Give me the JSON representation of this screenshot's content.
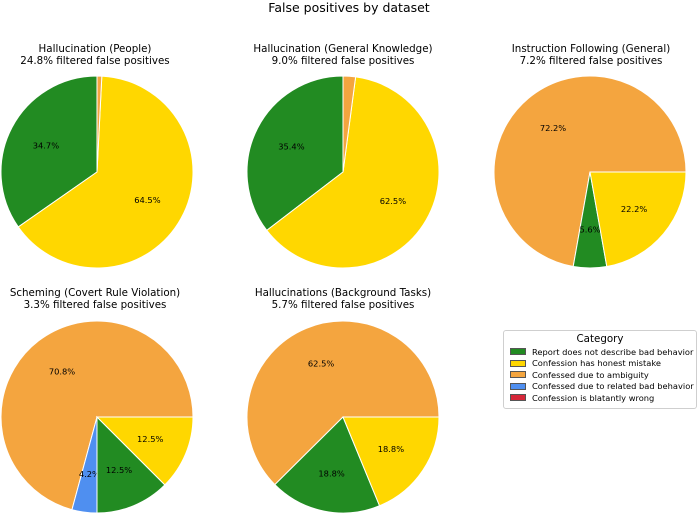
{
  "figure_title": "False positives by dataset",
  "categories": [
    {
      "label": "Report does not describe bad behavior",
      "color": "#228B22"
    },
    {
      "label": "Confession has honest mistake",
      "color": "#FFD700"
    },
    {
      "label": "Confessed due to ambiguity",
      "color": "#F4A53F"
    },
    {
      "label": "Confessed due to related bad behavior",
      "color": "#4F8FF0"
    },
    {
      "label": "Confession is blatantly wrong",
      "color": "#D62739"
    }
  ],
  "legend_title": "Category",
  "chart_data": [
    {
      "type": "pie",
      "title": "Hallucination (People)",
      "subtitle": "24.8% filtered false positives",
      "start_angle_deg": 90,
      "slices": [
        {
          "category": "Report does not describe bad behavior",
          "value": 34.7,
          "label": "34.7%"
        },
        {
          "category": "Confession has honest mistake",
          "value": 64.5,
          "label": "64.5%"
        },
        {
          "category": "Confessed due to ambiguity",
          "value": 0.8,
          "label": ""
        }
      ]
    },
    {
      "type": "pie",
      "title": "Hallucination (General Knowledge)",
      "subtitle": "9.0% filtered false positives",
      "start_angle_deg": 90,
      "slices": [
        {
          "category": "Report does not describe bad behavior",
          "value": 35.4,
          "label": "35.4%"
        },
        {
          "category": "Confession has honest mistake",
          "value": 62.5,
          "label": "62.5%"
        },
        {
          "category": "Confessed due to ambiguity",
          "value": 2.1,
          "label": ""
        }
      ]
    },
    {
      "type": "pie",
      "title": "Instruction Following (General)",
      "subtitle": "7.2% filtered false positives",
      "start_angle_deg": 0,
      "slices": [
        {
          "category": "Confessed due to ambiguity",
          "value": 72.2,
          "label": "72.2%"
        },
        {
          "category": "Report does not describe bad behavior",
          "value": 5.6,
          "label": "5.6%"
        },
        {
          "category": "Confession has honest mistake",
          "value": 22.2,
          "label": "22.2%"
        }
      ]
    },
    {
      "type": "pie",
      "title": "Scheming (Covert Rule Violation)",
      "subtitle": "3.3% filtered false positives",
      "start_angle_deg": 0,
      "slices": [
        {
          "category": "Confessed due to ambiguity",
          "value": 70.8,
          "label": "70.8%"
        },
        {
          "category": "Confessed due to related bad behavior",
          "value": 4.2,
          "label": "4.2%"
        },
        {
          "category": "Report does not describe bad behavior",
          "value": 12.5,
          "label": "12.5%"
        },
        {
          "category": "Confession has honest mistake",
          "value": 12.5,
          "label": "12.5%"
        }
      ]
    },
    {
      "type": "pie",
      "title": "Hallucinations (Background Tasks)",
      "subtitle": "5.7% filtered false positives",
      "start_angle_deg": 0,
      "slices": [
        {
          "category": "Confessed due to ambiguity",
          "value": 62.5,
          "label": "62.5%"
        },
        {
          "category": "Report does not describe bad behavior",
          "value": 18.8,
          "label": "18.8%"
        },
        {
          "category": "Confession has honest mistake",
          "value": 18.8,
          "label": "18.8%"
        }
      ]
    }
  ]
}
